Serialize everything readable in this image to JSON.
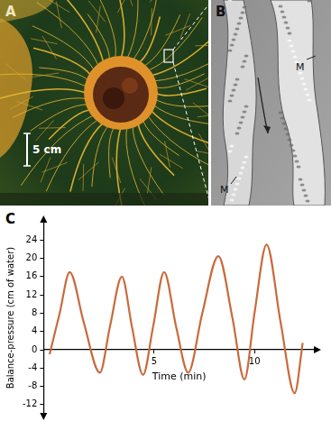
{
  "panels": {
    "A": {
      "label": "A",
      "scale_bar": "5 cm"
    },
    "B": {
      "label": "B",
      "marks": [
        "M",
        "M"
      ]
    },
    "C": {
      "label": "C"
    }
  },
  "chart_data": {
    "type": "line",
    "x_label": "Time (min)",
    "y_label": "Balance-pressure (cm of water)",
    "x": [
      -0.2,
      0.3,
      0.8,
      1.5,
      2.3,
      2.8,
      3.4,
      3.9,
      4.45,
      4.95,
      5.5,
      6.1,
      6.7,
      7.4,
      8.2,
      8.9,
      9.5,
      10.0,
      10.6,
      11.3,
      12.0,
      12.4
    ],
    "values": [
      -1,
      8,
      17,
      6,
      -5,
      5,
      16,
      5,
      -5.5,
      5,
      17,
      5,
      -5,
      8,
      20.5,
      7,
      -6.5,
      8,
      23,
      6,
      -9.5,
      1.5
    ],
    "color": "#c96a3c",
    "xlim": [
      -0.5,
      13
    ],
    "xticks": [
      5,
      10
    ],
    "ylim": [
      -14,
      28
    ],
    "yticks": [
      -12,
      -8,
      -4,
      0,
      4,
      8,
      12,
      16,
      20,
      24
    ],
    "grid": false
  }
}
